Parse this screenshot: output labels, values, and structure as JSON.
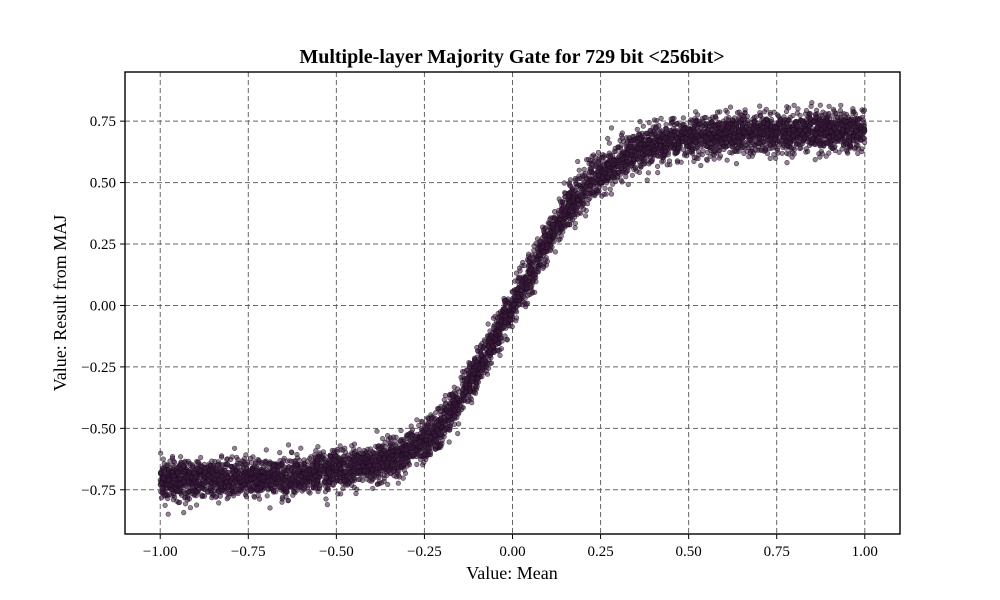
{
  "chart_data": {
    "type": "scatter",
    "title": "Multiple-layer Majority Gate for 729 bit <256bit>",
    "xlabel": "Value: Mean",
    "ylabel": "Value: Result from MAJ",
    "xlim": [
      -1.1,
      1.1
    ],
    "ylim": [
      -0.93,
      0.95
    ],
    "xticks": [
      -1.0,
      -0.75,
      -0.5,
      -0.25,
      0.0,
      0.25,
      0.5,
      0.75,
      1.0
    ],
    "xtick_labels": [
      "−1.00",
      "−0.75",
      "−0.50",
      "−0.25",
      "0.00",
      "0.25",
      "0.50",
      "0.75",
      "1.00"
    ],
    "yticks": [
      -0.75,
      -0.5,
      -0.25,
      0.0,
      0.25,
      0.5,
      0.75
    ],
    "ytick_labels": [
      "−0.75",
      "−0.50",
      "−0.25",
      "0.00",
      "0.25",
      "0.50",
      "0.75"
    ],
    "grid": true,
    "marker_color": "#3a1c3c",
    "series": [
      {
        "x": [
          -1.0,
          -0.95,
          -0.9,
          -0.85,
          -0.8,
          -0.75,
          -0.7,
          -0.65,
          -0.6,
          -0.55,
          -0.5,
          -0.45,
          -0.4,
          -0.35,
          -0.3,
          -0.25,
          -0.2,
          -0.15,
          -0.1,
          -0.05,
          0.0,
          0.05,
          0.1,
          0.15,
          0.2,
          0.25,
          0.3,
          0.35,
          0.4,
          0.45,
          0.5,
          0.55,
          0.6,
          0.65,
          0.7,
          0.75,
          0.8,
          0.85,
          0.9,
          0.95,
          1.0
        ],
        "y": [
          -0.71,
          -0.71,
          -0.71,
          -0.705,
          -0.705,
          -0.7,
          -0.7,
          -0.695,
          -0.69,
          -0.68,
          -0.67,
          -0.66,
          -0.65,
          -0.63,
          -0.6,
          -0.56,
          -0.49,
          -0.39,
          -0.26,
          -0.13,
          0.0,
          0.13,
          0.26,
          0.38,
          0.47,
          0.54,
          0.59,
          0.63,
          0.65,
          0.67,
          0.68,
          0.69,
          0.695,
          0.7,
          0.7,
          0.705,
          0.705,
          0.71,
          0.71,
          0.71,
          0.71
        ],
        "spread": 0.04
      }
    ]
  }
}
